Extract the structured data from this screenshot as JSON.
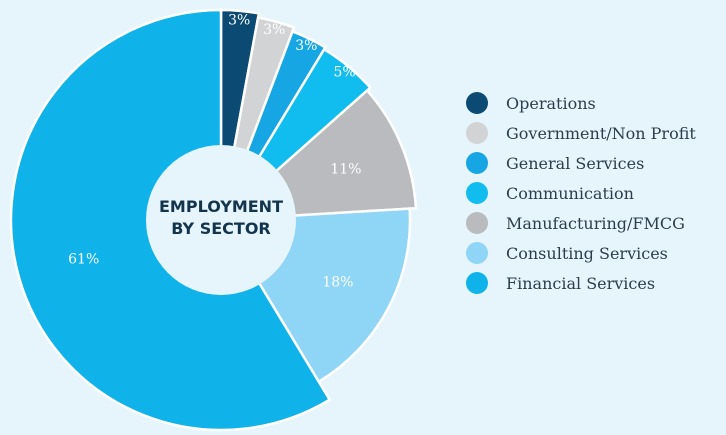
{
  "chart_data": {
    "type": "pie",
    "title": "",
    "center_label": [
      "EMPLOYMENT",
      "BY SECTOR"
    ],
    "legend_position": "right",
    "slices": [
      {
        "name": "Operations",
        "value": 3,
        "label": "3%",
        "color": "#0b4a73"
      },
      {
        "name": "Government/Non Profit",
        "value": 3,
        "label": "3%",
        "color": "#d2d3d5"
      },
      {
        "name": "General Services",
        "value": 3,
        "label": "3%",
        "color": "#17a6e4"
      },
      {
        "name": "Communication",
        "value": 5,
        "label": "5%",
        "color": "#10bdee"
      },
      {
        "name": "Manufacturing/FMCG",
        "value": 11,
        "label": "11%",
        "color": "#babbbe"
      },
      {
        "name": "Consulting Services",
        "value": 18,
        "label": "18%",
        "color": "#8fd6f6"
      },
      {
        "name": "Financial Services",
        "value": 61,
        "label": "61%",
        "color": "#0fb3ea"
      }
    ]
  }
}
